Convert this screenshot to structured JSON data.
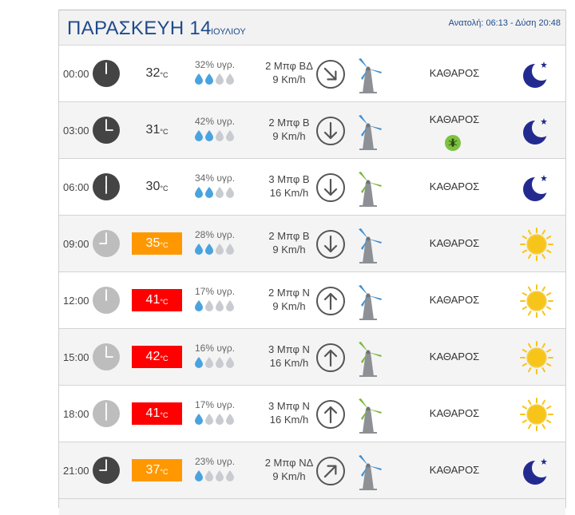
{
  "header": {
    "day": "ΠΑΡΑΣΚΕΥΗ 14",
    "month": "ΙΟΥΛΙΟΥ",
    "sun": "Ανατολή: 06:13 - Δύση 20:48"
  },
  "temp_unit": "°C",
  "colors": {
    "title": "#1f4a8c",
    "hot": "#ff9800",
    "very_hot": "#ff0000",
    "night_clock": "#444444",
    "day_clock": "#bdbdbd",
    "drop": "#4aa3df",
    "moon": "#232a8f",
    "sun": "#f7c51a"
  },
  "rows": [
    {
      "time": "00:00",
      "temp": "32",
      "level": "normal",
      "humidity": "32% υγρ.",
      "drops": 2,
      "wind_bf": "2 Μπφ ΒΔ",
      "wind_kmh": "9 Km/h",
      "wind_dir": "ΒΔ",
      "tower": "blue",
      "condition": "ΚΑΘΑΡΟΣ",
      "mosquito": false,
      "icon": "moon-icon",
      "night": true
    },
    {
      "time": "03:00",
      "temp": "31",
      "level": "normal",
      "humidity": "42% υγρ.",
      "drops": 2,
      "wind_bf": "2 Μπφ Β",
      "wind_kmh": "9 Km/h",
      "wind_dir": "Β",
      "tower": "blue",
      "condition": "ΚΑΘΑΡΟΣ",
      "mosquito": true,
      "icon": "moon-icon",
      "night": true
    },
    {
      "time": "06:00",
      "temp": "30",
      "level": "normal",
      "humidity": "34% υγρ.",
      "drops": 2,
      "wind_bf": "3 Μπφ Β",
      "wind_kmh": "16 Km/h",
      "wind_dir": "Β",
      "tower": "green",
      "condition": "ΚΑΘΑΡΟΣ",
      "mosquito": false,
      "icon": "moon-icon",
      "night": true
    },
    {
      "time": "09:00",
      "temp": "35",
      "level": "hot",
      "humidity": "28% υγρ.",
      "drops": 2,
      "wind_bf": "2 Μπφ Β",
      "wind_kmh": "9 Km/h",
      "wind_dir": "Β",
      "tower": "blue",
      "condition": "ΚΑΘΑΡΟΣ",
      "mosquito": false,
      "icon": "sun-icon",
      "night": false
    },
    {
      "time": "12:00",
      "temp": "41",
      "level": "very_hot",
      "humidity": "17% υγρ.",
      "drops": 1,
      "wind_bf": "2 Μπφ Ν",
      "wind_kmh": "9 Km/h",
      "wind_dir": "Ν",
      "tower": "blue",
      "condition": "ΚΑΘΑΡΟΣ",
      "mosquito": false,
      "icon": "sun-icon",
      "night": false
    },
    {
      "time": "15:00",
      "temp": "42",
      "level": "very_hot",
      "humidity": "16% υγρ.",
      "drops": 1,
      "wind_bf": "3 Μπφ Ν",
      "wind_kmh": "16 Km/h",
      "wind_dir": "Ν",
      "tower": "green",
      "condition": "ΚΑΘΑΡΟΣ",
      "mosquito": false,
      "icon": "sun-icon",
      "night": false
    },
    {
      "time": "18:00",
      "temp": "41",
      "level": "very_hot",
      "humidity": "17% υγρ.",
      "drops": 1,
      "wind_bf": "3 Μπφ Ν",
      "wind_kmh": "16 Km/h",
      "wind_dir": "Ν",
      "tower": "green",
      "condition": "ΚΑΘΑΡΟΣ",
      "mosquito": false,
      "icon": "sun-icon",
      "night": false
    },
    {
      "time": "21:00",
      "temp": "37",
      "level": "hot",
      "humidity": "23% υγρ.",
      "drops": 1,
      "wind_bf": "2 Μπφ ΝΔ",
      "wind_kmh": "9 Km/h",
      "wind_dir": "ΝΔ",
      "tower": "blue",
      "condition": "ΚΑΘΑΡΟΣ",
      "mosquito": false,
      "icon": "moon-icon",
      "night": true
    }
  ]
}
